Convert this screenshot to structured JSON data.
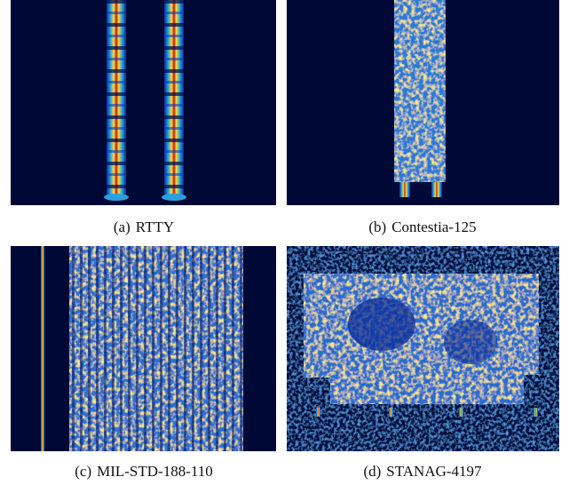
{
  "figure": {
    "panels": [
      {
        "label": "(a)",
        "caption": "RTTY"
      },
      {
        "label": "(b)",
        "caption": "Contestia-125"
      },
      {
        "label": "(c)",
        "caption": "MIL-STD-188-110"
      },
      {
        "label": "(d)",
        "caption": "STANAG-4197"
      }
    ]
  }
}
